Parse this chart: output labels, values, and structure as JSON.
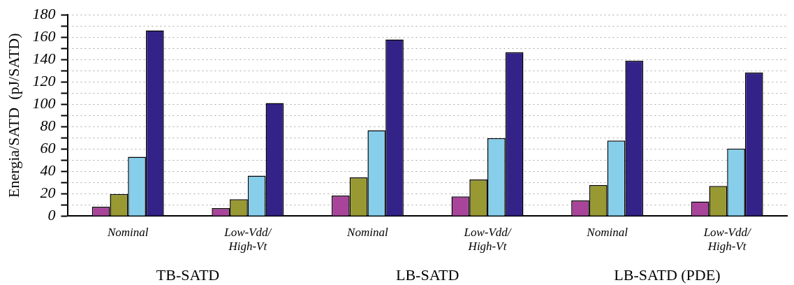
{
  "chart_data": {
    "type": "bar",
    "ylabel": "Energia/SATD  (pJ/SATD)",
    "categories": [
      "Nominal",
      "Low-Vdd/\nHigh-Vt",
      "Nominal",
      "Low-Vdd/\nHigh-Vt",
      "Nominal",
      "Low-Vdd/\nHigh-Vt"
    ],
    "series": [
      {
        "color": "#a8449a",
        "values": [
          8.2,
          7,
          18.3,
          17.4,
          13.9,
          13
        ]
      },
      {
        "color": "#999933",
        "values": [
          19.7,
          15,
          34.5,
          32.6,
          27.7,
          26.9
        ]
      },
      {
        "color": "#87ceeb",
        "values": [
          53,
          36,
          76.7,
          69.7,
          67.4,
          60.3
        ]
      },
      {
        "color": "#332288",
        "values": [
          166,
          101,
          158,
          146.6,
          138.9,
          128.4
        ]
      }
    ],
    "annotations": [
      "TB-SATD",
      "LB-SATD",
      "LB-SATD (PDE)"
    ],
    "ylim": [
      0,
      180
    ],
    "yticks": [
      0,
      {
        "value": 10,
        "label": null
      },
      20,
      {
        "value": 30,
        "label": null
      },
      40,
      {
        "value": 50,
        "label": null
      },
      60,
      {
        "value": 70,
        "label": null
      },
      80,
      {
        "value": 90,
        "label": null
      },
      100,
      {
        "value": 110,
        "label": null
      },
      120,
      {
        "value": 130,
        "label": null
      },
      140,
      {
        "value": 150,
        "label": null
      },
      160,
      {
        "value": 170,
        "label": null
      },
      180
    ],
    "grid": "y",
    "legend": false
  }
}
